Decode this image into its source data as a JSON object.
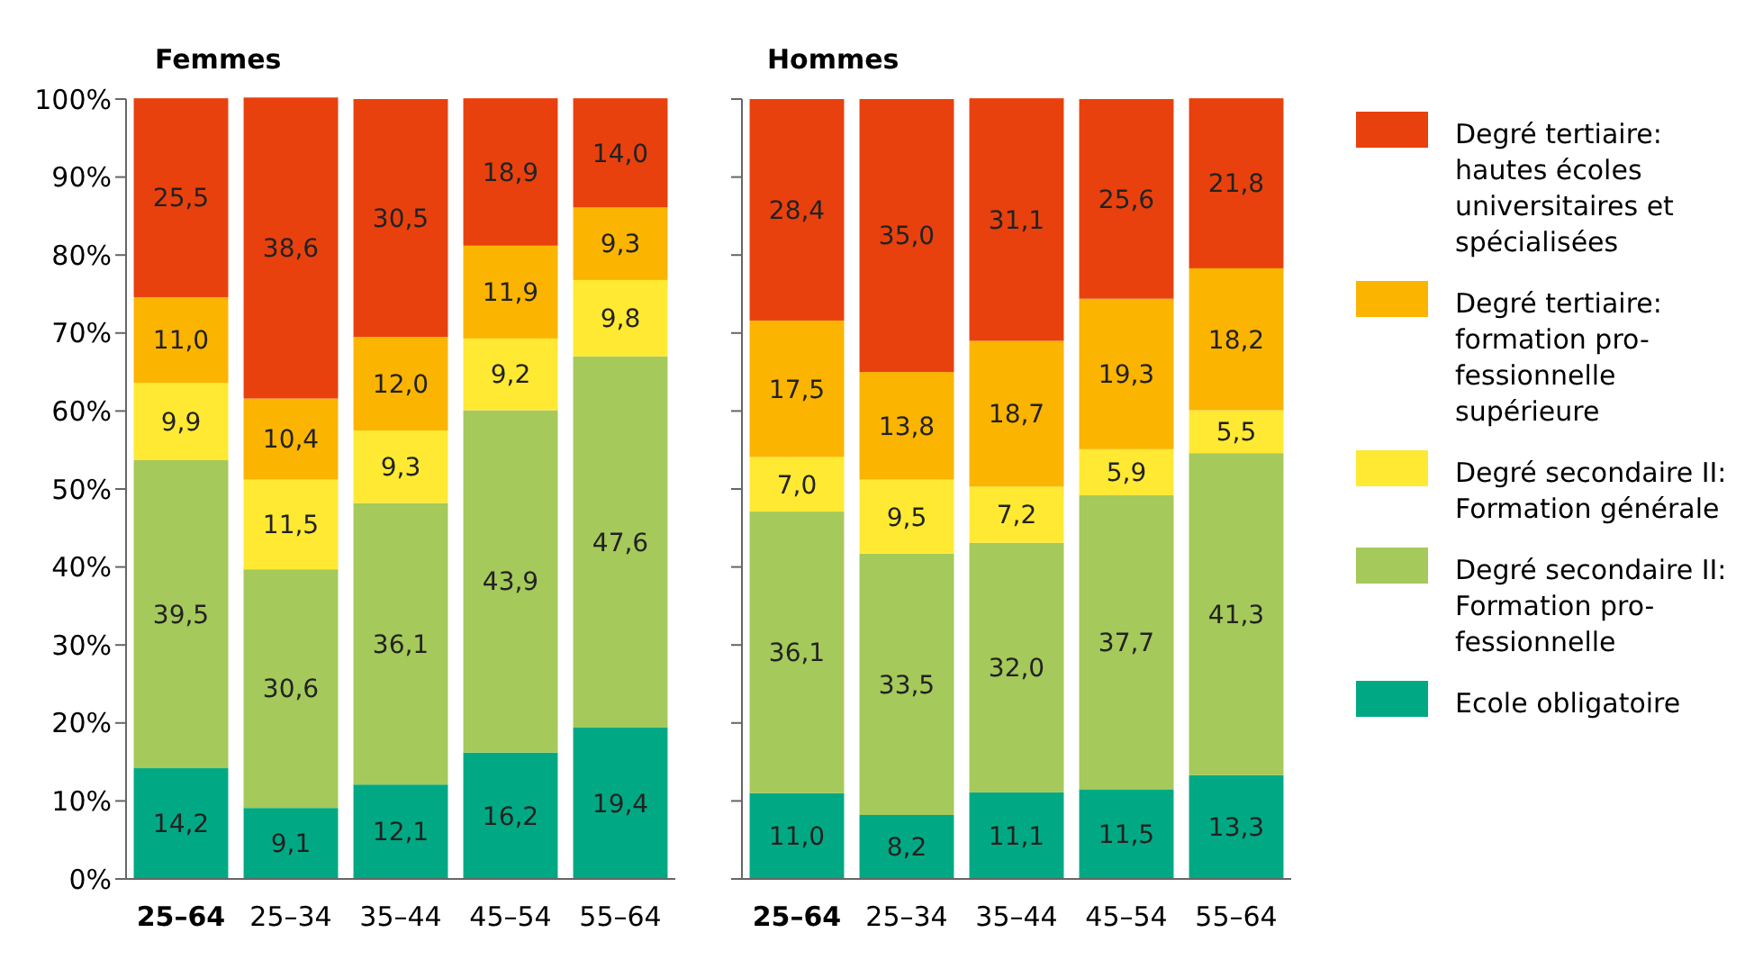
{
  "chart_data": [
    {
      "type": "bar",
      "title": "Femmes",
      "stacked": true,
      "categories": [
        "25–64",
        "25–34",
        "35–44",
        "45–54",
        "55–64"
      ],
      "ylim": [
        0,
        100
      ],
      "yticks": [
        {
          "value": 0,
          "label": "0%"
        },
        {
          "value": 10,
          "label": "10%"
        },
        {
          "value": 20,
          "label": "20%"
        },
        {
          "value": 30,
          "label": "30%"
        },
        {
          "value": 40,
          "label": "40%"
        },
        {
          "value": 50,
          "label": "50%"
        },
        {
          "value": 60,
          "label": "60%"
        },
        {
          "value": 70,
          "label": "70%"
        },
        {
          "value": 80,
          "label": "80%"
        },
        {
          "value": 90,
          "label": "90%"
        },
        {
          "value": 100,
          "label": "100%"
        }
      ],
      "legend": false,
      "series": [
        {
          "color": "#00a984",
          "values": [
            14.2,
            9.1,
            12.1,
            16.2,
            19.4
          ],
          "value_labels": [
            "14,2",
            "9,1",
            "12,1",
            "16,2",
            "19,4"
          ]
        },
        {
          "color": "#a5c95a",
          "values": [
            39.5,
            30.6,
            36.1,
            43.9,
            47.6
          ],
          "value_labels": [
            "39,5",
            "30,6",
            "36,1",
            "43,9",
            "47,6"
          ]
        },
        {
          "color": "#ffe933",
          "values": [
            9.9,
            11.5,
            9.3,
            9.2,
            9.8
          ],
          "value_labels": [
            "9,9",
            "11,5",
            "9,3",
            "9,2",
            "9,8"
          ]
        },
        {
          "color": "#fbb400",
          "values": [
            11.0,
            10.4,
            12.0,
            11.9,
            9.3
          ],
          "value_labels": [
            "11,0",
            "10,4",
            "12,0",
            "11,9",
            "9,3"
          ]
        },
        {
          "color": "#e8410e",
          "values": [
            25.5,
            38.6,
            30.5,
            18.9,
            14.0
          ],
          "value_labels": [
            "25,5",
            "38,6",
            "30,5",
            "18,9",
            "14,0"
          ]
        }
      ]
    },
    {
      "type": "bar",
      "title": "Hommes",
      "stacked": true,
      "categories": [
        "25–64",
        "25–34",
        "35–44",
        "45–54",
        "55–64"
      ],
      "ylim": [
        0,
        100
      ],
      "yticks": [
        {
          "value": 0,
          "label": null
        },
        {
          "value": 10,
          "label": null
        },
        {
          "value": 20,
          "label": null
        },
        {
          "value": 30,
          "label": null
        },
        {
          "value": 40,
          "label": null
        },
        {
          "value": 50,
          "label": null
        },
        {
          "value": 60,
          "label": null
        },
        {
          "value": 70,
          "label": null
        },
        {
          "value": 80,
          "label": null
        },
        {
          "value": 90,
          "label": null
        },
        {
          "value": 100,
          "label": null
        }
      ],
      "tick_labels": "x",
      "legend": "right",
      "series": [
        {
          "name": "Ecole obligatoire",
          "color": "#00a984",
          "values": [
            11.0,
            8.2,
            11.1,
            11.5,
            13.3
          ],
          "value_labels": [
            "11,0",
            "8,2",
            "11,1",
            "11,5",
            "13,3"
          ]
        },
        {
          "name": "Degré secondaire II:\nFormation pro-\nfessionnelle",
          "color": "#a5c95a",
          "values": [
            36.1,
            33.5,
            32.0,
            37.7,
            41.3
          ],
          "value_labels": [
            "36,1",
            "33,5",
            "32,0",
            "37,7",
            "41,3"
          ]
        },
        {
          "name": "Degré secondaire II:\nFormation générale",
          "color": "#ffe933",
          "values": [
            7.0,
            9.5,
            7.2,
            5.9,
            5.5
          ],
          "value_labels": [
            "7,0",
            "9,5",
            "7,2",
            "5,9",
            "5,5"
          ]
        },
        {
          "name": "Degré tertiaire:\nformation pro-\nfessionnelle\nsupérieure",
          "color": "#fbb400",
          "values": [
            17.5,
            13.8,
            18.7,
            19.3,
            18.2
          ],
          "value_labels": [
            "17,5",
            "13,8",
            "18,7",
            "19,3",
            "18,2"
          ]
        },
        {
          "name": "Degré tertiaire:\nhautes écoles\nuniversitaires et\nspécialisées",
          "color": "#e8410e",
          "values": [
            28.4,
            35.0,
            31.1,
            25.6,
            21.8
          ],
          "value_labels": [
            "28,4",
            "35,0",
            "31,1",
            "25,6",
            "21,8"
          ]
        }
      ]
    }
  ]
}
